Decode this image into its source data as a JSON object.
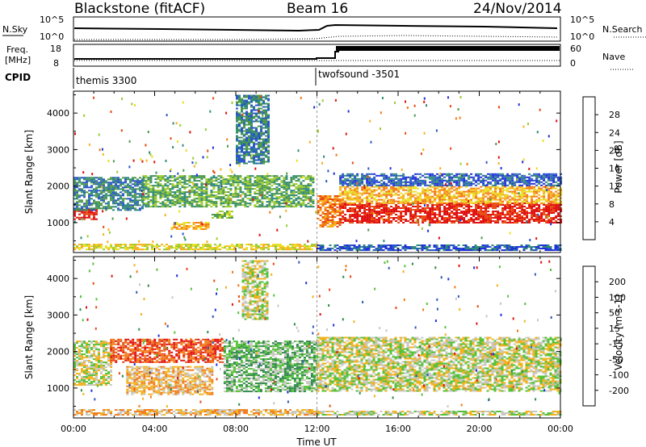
{
  "header": {
    "site": "Blackstone (fitACF)",
    "beam": "Beam 16",
    "date": "24/Nov/2014"
  },
  "strips": {
    "nsky_label": "N.Sky",
    "nsearch_label": "N.Search",
    "nsky_ticks": [
      "10^5",
      "10^0"
    ],
    "nsearch_ticks": [
      "10^5",
      "10^0"
    ],
    "freq_label_line1": "Freq.",
    "freq_label_line2": "[MHz]",
    "freq_ticks": [
      "18",
      "8"
    ],
    "nave_label": "Nave",
    "nave_ticks": [
      "60",
      "0"
    ],
    "cpid_label": "CPID",
    "cpid_segments": [
      {
        "label": "themis 3300",
        "start_hour": 0
      },
      {
        "label": "twofsound -3501",
        "start_hour": 12
      }
    ]
  },
  "chart_data": [
    {
      "type": "heatmap",
      "panel": "power",
      "ylabel": "Slant Range [km]",
      "ylim": [
        180,
        4600
      ],
      "yticks": [
        1000,
        2000,
        3000,
        4000
      ],
      "xlim": [
        0,
        24
      ],
      "colorbar": {
        "label": "Power [dB]",
        "tick_labels": [
          "4",
          "8",
          "12",
          "16",
          "20",
          "24",
          "28"
        ],
        "colors": [
          "#1f2fdb",
          "#2a57c9",
          "#2f8a7a",
          "#4f9a4a",
          "#9acb2e",
          "#e8e024",
          "#f7b01d",
          "#f27a17",
          "#e84a12",
          "#e01010"
        ]
      },
      "echo_regions": [
        {
          "x0": 0,
          "x1": 1.1,
          "r0": 1080,
          "r1": 1380,
          "level": 9
        },
        {
          "x0": 0,
          "x1": 3.4,
          "r0": 1350,
          "r1": 2250,
          "level": 2
        },
        {
          "x0": 3.4,
          "x1": 11.8,
          "r0": 1450,
          "r1": 2300,
          "level": 3
        },
        {
          "x0": 4.8,
          "x1": 6.6,
          "r0": 830,
          "r1": 1020,
          "level": 6
        },
        {
          "x0": 6.8,
          "x1": 7.8,
          "r0": 1140,
          "r1": 1330,
          "level": 4
        },
        {
          "x0": 8.0,
          "x1": 9.6,
          "r0": 2600,
          "r1": 4500,
          "level": 2
        },
        {
          "x0": 12.0,
          "x1": 13.1,
          "r0": 900,
          "r1": 1750,
          "level": 7
        },
        {
          "x0": 13.1,
          "x1": 24,
          "r0": 1000,
          "r1": 1550,
          "level": 9
        },
        {
          "x0": 13.1,
          "x1": 24,
          "r0": 1550,
          "r1": 2000,
          "level": 6
        },
        {
          "x0": 13.1,
          "x1": 24,
          "r0": 2000,
          "r1": 2350,
          "level": 1
        },
        {
          "x0": 0,
          "x1": 12,
          "r0": 250,
          "r1": 420,
          "level": 5
        },
        {
          "x0": 12,
          "x1": 24,
          "r0": 250,
          "r1": 400,
          "level": 1
        }
      ]
    },
    {
      "type": "heatmap",
      "panel": "velocity",
      "ylabel": "Slant Range [km]",
      "xlabel": "Time UT",
      "ylim": [
        180,
        4600
      ],
      "yticks": [
        1000,
        2000,
        3000,
        4000
      ],
      "xlim": [
        0,
        24
      ],
      "xtick_labels": [
        "00:00",
        "04:00",
        "08:00",
        "12:00",
        "16:00",
        "20:00",
        "00:00"
      ],
      "colorbar": {
        "label": "Velocity [m s-1]",
        "tick_labels": [
          "200",
          "100",
          "50",
          "15",
          "-15",
          "-50",
          "-100",
          "-200"
        ],
        "colors": [
          "#1f2fdb",
          "#2f57b8",
          "#2f8a4a",
          "#56c23a",
          "#c8c8c0",
          "#f2b21e",
          "#f27a17",
          "#e84a12",
          "#e01010"
        ]
      },
      "echo_regions": [
        {
          "x0": 0,
          "x1": 1.8,
          "r0": 1100,
          "r1": 2300,
          "level": 4
        },
        {
          "x0": 1.8,
          "x1": 7.4,
          "r0": 1700,
          "r1": 2350,
          "level": 7
        },
        {
          "x0": 2.6,
          "x1": 6.8,
          "r0": 820,
          "r1": 1600,
          "level": 5
        },
        {
          "x0": 7.4,
          "x1": 12.0,
          "r0": 900,
          "r1": 2300,
          "level": 3
        },
        {
          "x0": 8.3,
          "x1": 9.6,
          "r0": 2900,
          "r1": 4500,
          "level": 4
        },
        {
          "x0": 12.0,
          "x1": 24,
          "r0": 900,
          "r1": 2400,
          "level": 4
        },
        {
          "x0": 0,
          "x1": 12,
          "r0": 250,
          "r1": 420,
          "level": 5
        },
        {
          "x0": 12,
          "x1": 24,
          "r0": 250,
          "r1": 380,
          "level": 4
        }
      ]
    }
  ]
}
